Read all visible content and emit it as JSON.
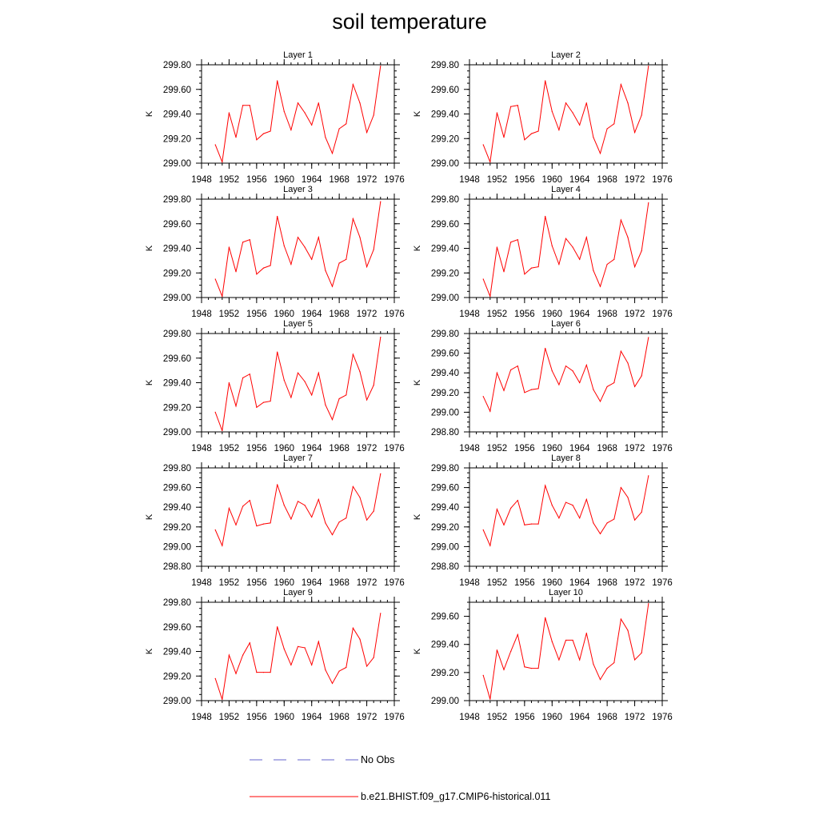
{
  "title": "soil temperature",
  "legend": [
    {
      "label": "No Obs",
      "color": "#6666cc",
      "dashed": true
    },
    {
      "label": "b.e21.BHIST.f09_g17.CMIP6-historical.011",
      "color": "#ff0000",
      "dashed": false
    }
  ],
  "chart_data": [
    {
      "type": "line",
      "title": "Layer 1",
      "ylabel": "K",
      "xlim": [
        1948,
        1976
      ],
      "ylim": [
        299.0,
        299.8
      ],
      "xticks": [
        "1948",
        "1952",
        "1956",
        "1960",
        "1964",
        "1968",
        "1972",
        "1976"
      ],
      "yticks": [
        "299.00",
        "299.20",
        "299.40",
        "299.60",
        "299.80"
      ],
      "x": [
        1950,
        1951,
        1952,
        1953,
        1954,
        1955,
        1956,
        1957,
        1958,
        1959,
        1960,
        1961,
        1962,
        1963,
        1964,
        1965,
        1966,
        1967,
        1968,
        1969,
        1970,
        1971,
        1972,
        1973,
        1974
      ],
      "series": [
        {
          "name": "b.e21.BHIST.f09_g17.CMIP6-historical.011",
          "color": "#ff0000",
          "values": [
            299.15,
            299.01,
            299.41,
            299.21,
            299.47,
            299.47,
            299.19,
            299.24,
            299.26,
            299.67,
            299.42,
            299.27,
            299.49,
            299.41,
            299.31,
            299.49,
            299.21,
            299.08,
            299.28,
            299.32,
            299.64,
            299.49,
            299.25,
            299.39,
            299.79
          ]
        }
      ]
    },
    {
      "type": "line",
      "title": "Layer 2",
      "ylabel": "K",
      "xlim": [
        1948,
        1976
      ],
      "ylim": [
        299.0,
        299.8
      ],
      "xticks": [
        "1948",
        "1952",
        "1956",
        "1960",
        "1964",
        "1968",
        "1972",
        "1976"
      ],
      "yticks": [
        "299.00",
        "299.20",
        "299.40",
        "299.60",
        "299.80"
      ],
      "x": [
        1950,
        1951,
        1952,
        1953,
        1954,
        1955,
        1956,
        1957,
        1958,
        1959,
        1960,
        1961,
        1962,
        1963,
        1964,
        1965,
        1966,
        1967,
        1968,
        1969,
        1970,
        1971,
        1972,
        1973,
        1974
      ],
      "series": [
        {
          "name": "b.e21.BHIST.f09_g17.CMIP6-historical.011",
          "color": "#ff0000",
          "values": [
            299.15,
            299.01,
            299.41,
            299.21,
            299.46,
            299.47,
            299.19,
            299.24,
            299.26,
            299.67,
            299.42,
            299.27,
            299.49,
            299.41,
            299.31,
            299.49,
            299.21,
            299.08,
            299.28,
            299.32,
            299.64,
            299.49,
            299.25,
            299.39,
            299.79
          ]
        }
      ]
    },
    {
      "type": "line",
      "title": "Layer 3",
      "ylabel": "K",
      "xlim": [
        1948,
        1976
      ],
      "ylim": [
        299.0,
        299.8
      ],
      "xticks": [
        "1948",
        "1952",
        "1956",
        "1960",
        "1964",
        "1968",
        "1972",
        "1976"
      ],
      "yticks": [
        "299.00",
        "299.20",
        "299.40",
        "299.60",
        "299.80"
      ],
      "x": [
        1950,
        1951,
        1952,
        1953,
        1954,
        1955,
        1956,
        1957,
        1958,
        1959,
        1960,
        1961,
        1962,
        1963,
        1964,
        1965,
        1966,
        1967,
        1968,
        1969,
        1970,
        1971,
        1972,
        1973,
        1974
      ],
      "series": [
        {
          "name": "b.e21.BHIST.f09_g17.CMIP6-historical.011",
          "color": "#ff0000",
          "values": [
            299.15,
            299.01,
            299.41,
            299.21,
            299.45,
            299.47,
            299.19,
            299.24,
            299.26,
            299.66,
            299.42,
            299.27,
            299.49,
            299.41,
            299.31,
            299.49,
            299.22,
            299.09,
            299.28,
            299.31,
            299.64,
            299.49,
            299.25,
            299.39,
            299.78
          ]
        }
      ]
    },
    {
      "type": "line",
      "title": "Layer 4",
      "ylabel": "K",
      "xlim": [
        1948,
        1976
      ],
      "ylim": [
        299.0,
        299.8
      ],
      "xticks": [
        "1948",
        "1952",
        "1956",
        "1960",
        "1964",
        "1968",
        "1972",
        "1976"
      ],
      "yticks": [
        "299.00",
        "299.20",
        "299.40",
        "299.60",
        "299.80"
      ],
      "x": [
        1950,
        1951,
        1952,
        1953,
        1954,
        1955,
        1956,
        1957,
        1958,
        1959,
        1960,
        1961,
        1962,
        1963,
        1964,
        1965,
        1966,
        1967,
        1968,
        1969,
        1970,
        1971,
        1972,
        1973,
        1974
      ],
      "series": [
        {
          "name": "b.e21.BHIST.f09_g17.CMIP6-historical.011",
          "color": "#ff0000",
          "values": [
            299.15,
            299.01,
            299.41,
            299.21,
            299.45,
            299.47,
            299.19,
            299.24,
            299.25,
            299.66,
            299.42,
            299.27,
            299.48,
            299.41,
            299.31,
            299.49,
            299.22,
            299.09,
            299.27,
            299.31,
            299.63,
            299.49,
            299.25,
            299.38,
            299.77
          ]
        }
      ]
    },
    {
      "type": "line",
      "title": "Layer 5",
      "ylabel": "K",
      "xlim": [
        1948,
        1976
      ],
      "ylim": [
        299.0,
        299.8
      ],
      "xticks": [
        "1948",
        "1952",
        "1956",
        "1960",
        "1964",
        "1968",
        "1972",
        "1976"
      ],
      "yticks": [
        "299.00",
        "299.20",
        "299.40",
        "299.60",
        "299.80"
      ],
      "x": [
        1950,
        1951,
        1952,
        1953,
        1954,
        1955,
        1956,
        1957,
        1958,
        1959,
        1960,
        1961,
        1962,
        1963,
        1964,
        1965,
        1966,
        1967,
        1968,
        1969,
        1970,
        1971,
        1972,
        1973,
        1974
      ],
      "series": [
        {
          "name": "b.e21.BHIST.f09_g17.CMIP6-historical.011",
          "color": "#ff0000",
          "values": [
            299.16,
            299.01,
            299.4,
            299.21,
            299.44,
            299.47,
            299.2,
            299.24,
            299.25,
            299.65,
            299.42,
            299.28,
            299.48,
            299.41,
            299.3,
            299.48,
            299.22,
            299.1,
            299.27,
            299.3,
            299.63,
            299.49,
            299.26,
            299.38,
            299.77
          ]
        }
      ]
    },
    {
      "type": "line",
      "title": "Layer 6",
      "ylabel": "K",
      "xlim": [
        1948,
        1976
      ],
      "ylim": [
        298.8,
        299.8
      ],
      "xticks": [
        "1948",
        "1952",
        "1956",
        "1960",
        "1964",
        "1968",
        "1972",
        "1976"
      ],
      "yticks": [
        "298.80",
        "299.00",
        "299.20",
        "299.40",
        "299.60",
        "299.80"
      ],
      "x": [
        1950,
        1951,
        1952,
        1953,
        1954,
        1955,
        1956,
        1957,
        1958,
        1959,
        1960,
        1961,
        1962,
        1963,
        1964,
        1965,
        1966,
        1967,
        1968,
        1969,
        1970,
        1971,
        1972,
        1973,
        1974
      ],
      "series": [
        {
          "name": "b.e21.BHIST.f09_g17.CMIP6-historical.011",
          "color": "#ff0000",
          "values": [
            299.16,
            299.01,
            299.4,
            299.22,
            299.43,
            299.47,
            299.2,
            299.23,
            299.24,
            299.65,
            299.42,
            299.28,
            299.47,
            299.42,
            299.3,
            299.48,
            299.23,
            299.11,
            299.26,
            299.3,
            299.62,
            299.5,
            299.26,
            299.37,
            299.76
          ]
        }
      ]
    },
    {
      "type": "line",
      "title": "Layer 7",
      "ylabel": "K",
      "xlim": [
        1948,
        1976
      ],
      "ylim": [
        298.8,
        299.8
      ],
      "xticks": [
        "1948",
        "1952",
        "1956",
        "1960",
        "1964",
        "1968",
        "1972",
        "1976"
      ],
      "yticks": [
        "298.80",
        "299.00",
        "299.20",
        "299.40",
        "299.60",
        "299.80"
      ],
      "x": [
        1950,
        1951,
        1952,
        1953,
        1954,
        1955,
        1956,
        1957,
        1958,
        1959,
        1960,
        1961,
        1962,
        1963,
        1964,
        1965,
        1966,
        1967,
        1968,
        1969,
        1970,
        1971,
        1972,
        1973,
        1974
      ],
      "series": [
        {
          "name": "b.e21.BHIST.f09_g17.CMIP6-historical.011",
          "color": "#ff0000",
          "values": [
            299.17,
            299.01,
            299.39,
            299.22,
            299.41,
            299.47,
            299.21,
            299.23,
            299.24,
            299.63,
            299.42,
            299.28,
            299.46,
            299.42,
            299.3,
            299.48,
            299.24,
            299.12,
            299.25,
            299.29,
            299.61,
            299.5,
            299.27,
            299.36,
            299.74
          ]
        }
      ]
    },
    {
      "type": "line",
      "title": "Layer 8",
      "ylabel": "K",
      "xlim": [
        1948,
        1976
      ],
      "ylim": [
        298.8,
        299.8
      ],
      "xticks": [
        "1948",
        "1952",
        "1956",
        "1960",
        "1964",
        "1968",
        "1972",
        "1976"
      ],
      "yticks": [
        "298.80",
        "299.00",
        "299.20",
        "299.40",
        "299.60",
        "299.80"
      ],
      "x": [
        1950,
        1951,
        1952,
        1953,
        1954,
        1955,
        1956,
        1957,
        1958,
        1959,
        1960,
        1961,
        1962,
        1963,
        1964,
        1965,
        1966,
        1967,
        1968,
        1969,
        1970,
        1971,
        1972,
        1973,
        1974
      ],
      "series": [
        {
          "name": "b.e21.BHIST.f09_g17.CMIP6-historical.011",
          "color": "#ff0000",
          "values": [
            299.17,
            299.01,
            299.38,
            299.22,
            299.39,
            299.47,
            299.22,
            299.23,
            299.23,
            299.62,
            299.42,
            299.29,
            299.45,
            299.42,
            299.29,
            299.48,
            299.24,
            299.13,
            299.24,
            299.28,
            299.6,
            299.5,
            299.27,
            299.35,
            299.72
          ]
        }
      ]
    },
    {
      "type": "line",
      "title": "Layer 9",
      "ylabel": "K",
      "xlim": [
        1948,
        1976
      ],
      "ylim": [
        299.0,
        299.8
      ],
      "xticks": [
        "1948",
        "1952",
        "1956",
        "1960",
        "1964",
        "1968",
        "1972",
        "1976"
      ],
      "yticks": [
        "299.00",
        "299.20",
        "299.40",
        "299.60",
        "299.80"
      ],
      "x": [
        1950,
        1951,
        1952,
        1953,
        1954,
        1955,
        1956,
        1957,
        1958,
        1959,
        1960,
        1961,
        1962,
        1963,
        1964,
        1965,
        1966,
        1967,
        1968,
        1969,
        1970,
        1971,
        1972,
        1973,
        1974
      ],
      "series": [
        {
          "name": "b.e21.BHIST.f09_g17.CMIP6-historical.011",
          "color": "#ff0000",
          "values": [
            299.18,
            299.01,
            299.37,
            299.22,
            299.37,
            299.47,
            299.23,
            299.23,
            299.23,
            299.6,
            299.42,
            299.29,
            299.44,
            299.43,
            299.29,
            299.48,
            299.25,
            299.14,
            299.24,
            299.27,
            299.59,
            299.5,
            299.28,
            299.35,
            299.71
          ]
        }
      ]
    },
    {
      "type": "line",
      "title": "Layer 10",
      "ylabel": "K",
      "xlim": [
        1948,
        1976
      ],
      "ylim": [
        299.0,
        299.7
      ],
      "xticks": [
        "1948",
        "1952",
        "1956",
        "1960",
        "1964",
        "1968",
        "1972",
        "1976"
      ],
      "yticks": [
        "299.00",
        "299.20",
        "299.40",
        "299.60"
      ],
      "x": [
        1950,
        1951,
        1952,
        1953,
        1954,
        1955,
        1956,
        1957,
        1958,
        1959,
        1960,
        1961,
        1962,
        1963,
        1964,
        1965,
        1966,
        1967,
        1968,
        1969,
        1970,
        1971,
        1972,
        1973,
        1974
      ],
      "series": [
        {
          "name": "b.e21.BHIST.f09_g17.CMIP6-historical.011",
          "color": "#ff0000",
          "values": [
            299.18,
            299.01,
            299.36,
            299.22,
            299.35,
            299.47,
            299.24,
            299.23,
            299.23,
            299.59,
            299.42,
            299.29,
            299.43,
            299.43,
            299.29,
            299.48,
            299.26,
            299.15,
            299.23,
            299.27,
            299.58,
            299.5,
            299.29,
            299.34,
            299.69
          ]
        }
      ]
    }
  ]
}
